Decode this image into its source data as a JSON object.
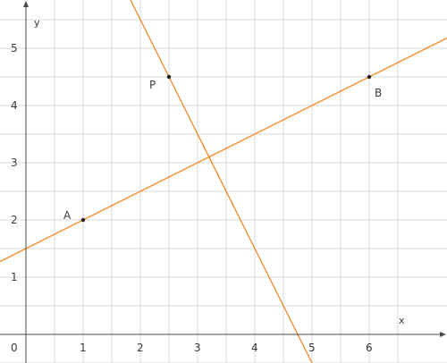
{
  "diagram": {
    "axes": {
      "x_label": "x",
      "y_label": "y",
      "origin_label": "0",
      "x_ticks": [
        "1",
        "2",
        "3",
        "4",
        "5",
        "6"
      ],
      "y_ticks": [
        "1",
        "2",
        "3",
        "4",
        "5"
      ],
      "x_range": [
        -0.45,
        6.9
      ],
      "y_range": [
        -0.5,
        5.85
      ],
      "grid": true
    },
    "points": [
      {
        "label": "A",
        "x": 1,
        "y": 2
      },
      {
        "label": "B",
        "x": 6,
        "y": 4.5
      },
      {
        "label": "P",
        "x": 2.5,
        "y": 4.5
      }
    ],
    "lines": [
      {
        "through": "A,B",
        "slope": 0.5,
        "intercept": 1.5,
        "color": "#f08a24"
      },
      {
        "through": "P",
        "slope": -2,
        "intercept": 9.5,
        "color": "#f08a24"
      }
    ],
    "colors": {
      "grid": "#d8d8d8",
      "axis": "#4a4a4a",
      "line": "#f08a24",
      "point": "#222222",
      "text": "#3a3a3a"
    }
  }
}
